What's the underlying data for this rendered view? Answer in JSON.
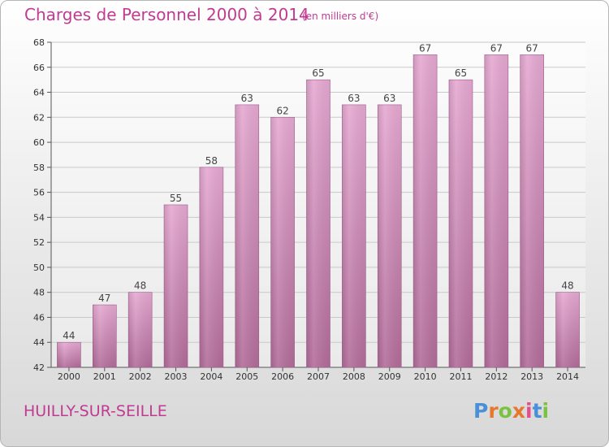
{
  "chart_data": {
    "type": "bar",
    "title": "Charges de Personnel 2000 à 2014",
    "subtitle": "(en milliers d'€)",
    "categories": [
      "2000",
      "2001",
      "2002",
      "2003",
      "2004",
      "2005",
      "2006",
      "2007",
      "2008",
      "2009",
      "2010",
      "2011",
      "2012",
      "2013",
      "2014"
    ],
    "values": [
      44,
      47,
      48,
      55,
      58,
      63,
      62,
      65,
      63,
      63,
      67,
      65,
      67,
      67,
      48
    ],
    "ylim": [
      42,
      68
    ],
    "yticks": [
      42,
      44,
      46,
      48,
      50,
      52,
      54,
      56,
      58,
      60,
      62,
      64,
      66,
      68
    ],
    "grid": true,
    "colors": {
      "bar_top": "#e6a9d2",
      "bar_bottom": "#b26d9a",
      "text": "#c03b91"
    }
  },
  "location": "HUILLY-SUR-SEILLE",
  "logo": {
    "letters": [
      "P",
      "r",
      "o",
      "x",
      "i",
      "t",
      "i"
    ],
    "colors": [
      "#4a90d9",
      "#e8772e",
      "#7cc242",
      "#e8772e",
      "#e84c8b",
      "#4a90d9",
      "#7cc242"
    ]
  }
}
